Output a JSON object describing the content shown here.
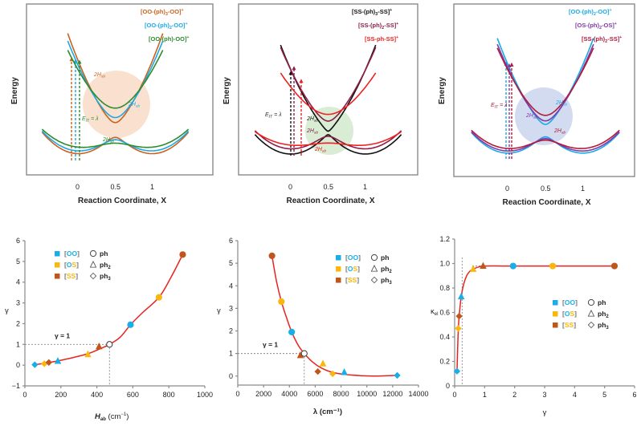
{
  "colors": {
    "fit_line": "#e8231f",
    "OO": "#19aee8",
    "OS": "#f9b70f",
    "SS": "#c0561a",
    "ph3_OO": "#c9621f",
    "ph2_OO": "#1aa9e5",
    "ph_OO": "#2e8b2e",
    "ph3_SS": "#111111",
    "ph2_SS": "#8e1d4a",
    "ph_SS": "#ee2222",
    "ph2_OS": "#7d3aa8",
    "ph2_SS_c": "#b01c3b",
    "circle_orange": "#f6c9a8",
    "circle_green": "#b9ddb0",
    "circle_blue": "#aebde6"
  },
  "chart_data": [
    {
      "type": "line",
      "panel": "top-left",
      "title": "",
      "xlabel": "Reaction Coordinate, X",
      "ylabel": "Energy",
      "xticks": [
        "0",
        "0.5",
        "1"
      ],
      "xlim": [
        -0.5,
        1.5
      ],
      "series": [
        {
          "name": "[OO-(ph)3-OO]+",
          "label_main": "[OO-(ph)",
          "label_sub": "3",
          "label_end": "-OO]",
          "label_sup": "+",
          "color_key": "ph3_OO",
          "lambda": 1.0,
          "Hab": 0.08
        },
        {
          "name": "[OO-(ph)2-OO]+",
          "label_main": "[OO-(ph)",
          "label_sub": "2",
          "label_end": "-OO]",
          "label_sup": "+",
          "color_key": "ph2_OO",
          "lambda": 0.9,
          "Hab": 0.12
        },
        {
          "name": "[OO-(ph)-OO]+",
          "label_main": "[OO-(ph)-OO]",
          "label_sub": "",
          "label_end": "",
          "label_sup": "+",
          "color_key": "ph_OO",
          "lambda": 0.75,
          "Hab": 0.19
        }
      ],
      "annotations": [
        "λ",
        "λ",
        "E",
        "IT",
        " = λ",
        "2H",
        "ab",
        "2H",
        "ab",
        "2H",
        "ab"
      ]
    },
    {
      "type": "line",
      "panel": "top-middle",
      "title": "",
      "xlabel": "Reaction Coordinate, X",
      "ylabel": "Energy",
      "xticks": [
        "0",
        "0.5",
        "1"
      ],
      "xlim": [
        -0.5,
        1.5
      ],
      "series": [
        {
          "name": "[SS-(ph)3-SS]+",
          "label_main": "[SS-(ph)",
          "label_sub": "3",
          "label_end": "-SS]",
          "label_sup": "+",
          "color_key": "ph3_SS",
          "lambda": 1.0,
          "Hab": 0.02
        },
        {
          "name": "[SS-(ph)2-SS]+",
          "label_main": "[SS-(ph)",
          "label_sub": "2",
          "label_end": "-SS]",
          "label_sup": "+",
          "color_key": "ph2_SS",
          "lambda": 0.92,
          "Hab": 0.09
        },
        {
          "name": "[SS-ph-SS]+",
          "label_main": "[SS-ph-SS]",
          "label_sub": "",
          "label_end": "",
          "label_sup": "+",
          "color_key": "ph_SS",
          "lambda": 0.6,
          "Hab": 0.17
        }
      ],
      "annotations": [
        "E",
        "IT",
        " = λ",
        "λ",
        "λ",
        "2H",
        "ab",
        "2H",
        "ab",
        "2H",
        "ab"
      ]
    },
    {
      "type": "line",
      "panel": "top-right",
      "title": "",
      "xlabel": "Reaction Coordinate, X",
      "ylabel": "Energy",
      "xticks": [
        "0",
        "0.5",
        "1"
      ],
      "xlim": [
        -0.5,
        1.5
      ],
      "series": [
        {
          "name": "[OO-(ph)2-OO]+",
          "label_main": "[OO-(ph)",
          "label_sub": "2",
          "label_end": "-OO]",
          "label_sup": "+",
          "color_key": "ph2_OO",
          "lambda": 1.0,
          "Hab": 0.07
        },
        {
          "name": "[OS-(ph)2-OS]+",
          "label_main": "[OS-(ph)",
          "label_sub": "2",
          "label_end": "-OS]",
          "label_sup": "+",
          "color_key": "ph2_OS",
          "lambda": 0.92,
          "Hab": 0.1
        },
        {
          "name": "[SS-(ph)2-SS]+",
          "label_main": "[SS-(ph)",
          "label_sub": "2",
          "label_end": "-SS]",
          "label_sup": "+",
          "color_key": "ph2_SS_c",
          "lambda": 0.85,
          "Hab": 0.14
        }
      ],
      "annotations": [
        "λ",
        "λ",
        "E",
        "IT",
        " = λ",
        "2H",
        "ab",
        "2H",
        "ab",
        "2H",
        "ab"
      ]
    },
    {
      "type": "scatter",
      "panel": "bottom-left",
      "xlabel_main": "H",
      "xlabel_sub": "ab",
      "xlabel_unit": " (cm",
      "xlabel_sup": "−1",
      "xlabel_close": ")",
      "ylabel": "γ",
      "xlim": [
        0,
        1000
      ],
      "ylim": [
        -1,
        6
      ],
      "xticks": [
        0,
        200,
        400,
        600,
        800,
        1000
      ],
      "yticks": [
        -1,
        0,
        1,
        2,
        3,
        4,
        5,
        6
      ],
      "reference": {
        "label": "γ = 1",
        "x": 470,
        "y": 1
      },
      "points": [
        {
          "x": 55,
          "y": 0.02,
          "group": "OO",
          "shape": "diamond"
        },
        {
          "x": 108,
          "y": 0.07,
          "group": "OS",
          "shape": "diamond"
        },
        {
          "x": 133,
          "y": 0.13,
          "group": "SS",
          "shape": "diamond"
        },
        {
          "x": 183,
          "y": 0.2,
          "group": "OO",
          "shape": "triangle"
        },
        {
          "x": 350,
          "y": 0.52,
          "group": "OS",
          "shape": "triangle"
        },
        {
          "x": 412,
          "y": 0.9,
          "group": "SS",
          "shape": "triangle"
        },
        {
          "x": 470,
          "y": 1.0,
          "group": "open",
          "shape": "circle"
        },
        {
          "x": 587,
          "y": 1.95,
          "group": "OO",
          "shape": "circle"
        },
        {
          "x": 745,
          "y": 3.27,
          "group": "OS",
          "shape": "circle"
        },
        {
          "x": 877,
          "y": 5.33,
          "group": "SS",
          "shape": "circle"
        }
      ],
      "fit": [
        [
          55,
          0.02
        ],
        [
          150,
          0.15
        ],
        [
          250,
          0.33
        ],
        [
          350,
          0.55
        ],
        [
          420,
          0.8
        ],
        [
          470,
          1.0
        ],
        [
          530,
          1.35
        ],
        [
          587,
          1.95
        ],
        [
          650,
          2.5
        ],
        [
          745,
          3.27
        ],
        [
          810,
          4.2
        ],
        [
          877,
          5.33
        ]
      ],
      "legend_position": "top-left"
    },
    {
      "type": "scatter",
      "panel": "bottom-middle",
      "xlabel": "λ (cm⁻¹)",
      "ylabel": "γ",
      "xlim": [
        0,
        14000
      ],
      "ylim": [
        -0.4,
        6
      ],
      "xticks": [
        0,
        2000,
        4000,
        6000,
        8000,
        10000,
        12000,
        14000
      ],
      "yticks": [
        0,
        1,
        2,
        3,
        4,
        5,
        6
      ],
      "reference": {
        "label": "γ = 1",
        "x": 5150,
        "y": 1
      },
      "points": [
        {
          "x": 2650,
          "y": 5.33,
          "group": "SS",
          "shape": "circle"
        },
        {
          "x": 3380,
          "y": 3.3,
          "group": "OS",
          "shape": "circle"
        },
        {
          "x": 4180,
          "y": 1.95,
          "group": "OO",
          "shape": "circle"
        },
        {
          "x": 4850,
          "y": 0.92,
          "group": "SS",
          "shape": "triangle"
        },
        {
          "x": 5150,
          "y": 1.0,
          "group": "open",
          "shape": "circle"
        },
        {
          "x": 6200,
          "y": 0.2,
          "group": "SS",
          "shape": "diamond"
        },
        {
          "x": 6600,
          "y": 0.55,
          "group": "OS",
          "shape": "triangle"
        },
        {
          "x": 7350,
          "y": 0.1,
          "group": "OS",
          "shape": "diamond"
        },
        {
          "x": 8250,
          "y": 0.17,
          "group": "OO",
          "shape": "triangle"
        },
        {
          "x": 12350,
          "y": 0.03,
          "group": "OO",
          "shape": "diamond"
        }
      ],
      "fit": [
        [
          2650,
          5.33
        ],
        [
          3000,
          4.2
        ],
        [
          3380,
          3.3
        ],
        [
          3800,
          2.55
        ],
        [
          4180,
          1.95
        ],
        [
          4700,
          1.35
        ],
        [
          5150,
          1.0
        ],
        [
          5800,
          0.62
        ],
        [
          6500,
          0.35
        ],
        [
          7300,
          0.17
        ],
        [
          8300,
          0.07
        ],
        [
          9500,
          0.02
        ],
        [
          10500,
          0.0
        ],
        [
          12350,
          0.03
        ]
      ],
      "legend_position": "top-right"
    },
    {
      "type": "scatter",
      "panel": "bottom-right",
      "xlabel": "γ",
      "ylabel_main": "κ",
      "ylabel_sub": "el",
      "xlim": [
        0,
        6
      ],
      "ylim": [
        0,
        1.2
      ],
      "xticks": [
        0,
        1,
        2,
        3,
        4,
        5,
        6
      ],
      "yticks": [
        "0",
        "0.2",
        "0.4",
        "0.6",
        "0.8",
        "1.0",
        "1.2"
      ],
      "reference": {
        "x": 0.25,
        "y": 0.98
      },
      "points": [
        {
          "x": 0.08,
          "y": 0.12,
          "group": "OO",
          "shape": "diamond"
        },
        {
          "x": 0.12,
          "y": 0.47,
          "group": "OS",
          "shape": "diamond"
        },
        {
          "x": 0.15,
          "y": 0.57,
          "group": "SS",
          "shape": "diamond"
        },
        {
          "x": 0.22,
          "y": 0.73,
          "group": "OO",
          "shape": "triangle"
        },
        {
          "x": 0.62,
          "y": 0.955,
          "group": "OS",
          "shape": "triangle"
        },
        {
          "x": 0.95,
          "y": 0.98,
          "group": "SS",
          "shape": "triangle"
        },
        {
          "x": 1.95,
          "y": 0.98,
          "group": "OO",
          "shape": "circle"
        },
        {
          "x": 3.27,
          "y": 0.98,
          "group": "OS",
          "shape": "circle"
        },
        {
          "x": 5.33,
          "y": 0.98,
          "group": "SS",
          "shape": "circle"
        }
      ],
      "fit": [
        [
          0.08,
          0.12
        ],
        [
          0.1,
          0.3
        ],
        [
          0.13,
          0.5
        ],
        [
          0.17,
          0.62
        ],
        [
          0.22,
          0.73
        ],
        [
          0.3,
          0.83
        ],
        [
          0.4,
          0.9
        ],
        [
          0.5,
          0.935
        ],
        [
          0.62,
          0.955
        ],
        [
          0.8,
          0.972
        ],
        [
          1.0,
          0.98
        ],
        [
          2,
          0.98
        ],
        [
          5.33,
          0.98
        ]
      ],
      "legend_position": "center-right"
    }
  ],
  "legend": {
    "rows": [
      {
        "group": "OO",
        "bracket_open": "[",
        "label": "OO",
        "bracket_close": "]",
        "shape_label": "ph",
        "shape_sub": ""
      },
      {
        "group": "OS",
        "bracket_open": "[",
        "label": "OS",
        "bracket_close": "]",
        "shape_label": "ph",
        "shape_sub": "2"
      },
      {
        "group": "SS",
        "bracket_open": "[",
        "label": "SS",
        "bracket_close": "]",
        "shape_label": "ph",
        "shape_sub": "3"
      }
    ]
  }
}
